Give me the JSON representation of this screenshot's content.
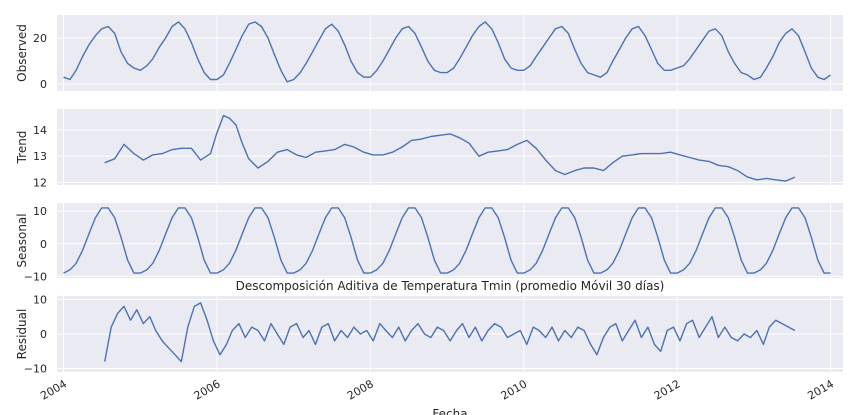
{
  "chart_data": {
    "type": "line",
    "title": "Descomposición Aditiva de Temperatura Tmin (promedio Móvil 30 días)",
    "xlabel": "Fecha",
    "x_range": [
      "2003-12-01",
      "2014-03-01"
    ],
    "x_ticks": [
      "2004",
      "2006",
      "2008",
      "2010",
      "2012",
      "2014"
    ],
    "grid": true,
    "legend": "none",
    "line_color": "#4c72b0",
    "panel_background": "#eaeaf2",
    "panels": [
      {
        "ylabel": "Observed",
        "ylim": [
          -3,
          30
        ],
        "y_ticks": [
          "0",
          "20"
        ],
        "y_tick_values": [
          0,
          20
        ],
        "series": {
          "x": [
            "2004-01-01",
            "2004-02-01",
            "2004-03-01",
            "2004-04-01",
            "2004-05-01",
            "2004-06-01",
            "2004-07-01",
            "2004-08-01",
            "2004-09-01",
            "2004-10-01",
            "2004-11-01",
            "2004-12-01",
            "2005-01-01",
            "2005-02-01",
            "2005-03-01",
            "2005-04-01",
            "2005-05-01",
            "2005-06-01",
            "2005-07-01",
            "2005-08-01",
            "2005-09-01",
            "2005-10-01",
            "2005-11-01",
            "2005-12-01",
            "2006-01-01",
            "2006-02-01",
            "2006-03-01",
            "2006-04-01",
            "2006-05-01",
            "2006-06-01",
            "2006-07-01",
            "2006-08-01",
            "2006-09-01",
            "2006-10-01",
            "2006-11-01",
            "2006-12-01",
            "2007-01-01",
            "2007-02-01",
            "2007-03-01",
            "2007-04-01",
            "2007-05-01",
            "2007-06-01",
            "2007-07-01",
            "2007-08-01",
            "2007-09-01",
            "2007-10-01",
            "2007-11-01",
            "2007-12-01",
            "2008-01-01",
            "2008-02-01",
            "2008-03-01",
            "2008-04-01",
            "2008-05-01",
            "2008-06-01",
            "2008-07-01",
            "2008-08-01",
            "2008-09-01",
            "2008-10-01",
            "2008-11-01",
            "2008-12-01",
            "2009-01-01",
            "2009-02-01",
            "2009-03-01",
            "2009-04-01",
            "2009-05-01",
            "2009-06-01",
            "2009-07-01",
            "2009-08-01",
            "2009-09-01",
            "2009-10-01",
            "2009-11-01",
            "2009-12-01",
            "2010-01-01",
            "2010-02-01",
            "2010-03-01",
            "2010-04-01",
            "2010-05-01",
            "2010-06-01",
            "2010-07-01",
            "2010-08-01",
            "2010-09-01",
            "2010-10-01",
            "2010-11-01",
            "2010-12-01",
            "2011-01-01",
            "2011-02-01",
            "2011-03-01",
            "2011-04-01",
            "2011-05-01",
            "2011-06-01",
            "2011-07-01",
            "2011-08-01",
            "2011-09-01",
            "2011-10-01",
            "2011-11-01",
            "2011-12-01",
            "2012-01-01",
            "2012-02-01",
            "2012-03-01",
            "2012-04-01",
            "2012-05-01",
            "2012-06-01",
            "2012-07-01",
            "2012-08-01",
            "2012-09-01",
            "2012-10-01",
            "2012-11-01",
            "2012-12-01",
            "2013-01-01",
            "2013-02-01",
            "2013-03-01",
            "2013-04-01",
            "2013-05-01",
            "2013-06-01",
            "2013-07-01",
            "2013-08-01",
            "2013-09-01",
            "2013-10-01",
            "2013-11-01",
            "2013-12-01",
            "2014-01-01"
          ],
          "y": [
            3,
            2,
            6,
            12,
            17,
            21,
            24,
            25,
            22,
            14,
            9,
            7,
            6,
            8,
            11,
            16,
            20,
            25,
            27,
            24,
            18,
            11,
            5,
            2,
            2,
            4,
            9,
            15,
            21,
            26,
            27,
            25,
            20,
            13,
            6,
            1,
            2,
            5,
            9,
            14,
            19,
            24,
            26,
            23,
            17,
            10,
            5,
            3,
            3,
            6,
            10,
            15,
            20,
            24,
            25,
            22,
            16,
            10,
            6,
            5,
            5,
            7,
            11,
            16,
            21,
            25,
            27,
            24,
            18,
            11,
            7,
            6,
            6,
            8,
            12,
            16,
            20,
            24,
            25,
            22,
            15,
            9,
            5,
            4,
            3,
            5,
            10,
            15,
            20,
            24,
            25,
            21,
            15,
            9,
            6,
            6,
            7,
            8,
            11,
            15,
            19,
            23,
            24,
            21,
            14,
            9,
            5,
            4,
            2,
            3,
            7,
            12,
            18,
            22,
            24,
            21,
            14,
            7,
            3,
            2,
            4
          ]
        }
      },
      {
        "ylabel": "Trend",
        "ylim": [
          11.9,
          14.8
        ],
        "y_ticks": [
          "12",
          "13",
          "14"
        ],
        "y_tick_values": [
          12,
          13,
          14
        ],
        "series": {
          "x": [
            "2004-07-15",
            "2004-09-01",
            "2004-10-15",
            "2004-12-01",
            "2005-01-15",
            "2005-03-01",
            "2005-04-15",
            "2005-06-01",
            "2005-07-15",
            "2005-09-01",
            "2005-10-15",
            "2005-12-01",
            "2006-01-01",
            "2006-02-01",
            "2006-03-01",
            "2006-04-01",
            "2006-05-01",
            "2006-06-01",
            "2006-07-15",
            "2006-09-01",
            "2006-10-15",
            "2006-12-01",
            "2007-01-15",
            "2007-03-01",
            "2007-04-15",
            "2007-06-01",
            "2007-07-15",
            "2007-09-01",
            "2007-10-15",
            "2007-12-01",
            "2008-01-15",
            "2008-03-01",
            "2008-04-15",
            "2008-06-01",
            "2008-07-15",
            "2008-09-01",
            "2008-10-15",
            "2008-12-01",
            "2009-01-15",
            "2009-03-01",
            "2009-04-15",
            "2009-06-01",
            "2009-07-15",
            "2009-09-01",
            "2009-10-15",
            "2009-12-01",
            "2010-01-15",
            "2010-03-01",
            "2010-04-15",
            "2010-06-01",
            "2010-07-15",
            "2010-09-01",
            "2010-10-15",
            "2010-12-01",
            "2011-01-15",
            "2011-03-01",
            "2011-04-15",
            "2011-06-01",
            "2011-07-15",
            "2011-09-01",
            "2011-10-15",
            "2011-12-01",
            "2012-01-15",
            "2012-03-01",
            "2012-04-15",
            "2012-06-01",
            "2012-07-15",
            "2012-09-01",
            "2012-10-15",
            "2012-12-01",
            "2013-01-15",
            "2013-03-01",
            "2013-04-15",
            "2013-06-01",
            "2013-07-15"
          ],
          "y": [
            12.75,
            12.9,
            13.45,
            13.1,
            12.85,
            13.05,
            13.1,
            13.25,
            13.3,
            13.3,
            12.85,
            13.1,
            13.9,
            14.55,
            14.45,
            14.2,
            13.5,
            12.9,
            12.55,
            12.8,
            13.15,
            13.25,
            13.05,
            12.95,
            13.15,
            13.2,
            13.25,
            13.45,
            13.35,
            13.15,
            13.05,
            13.05,
            13.15,
            13.35,
            13.6,
            13.65,
            13.75,
            13.8,
            13.85,
            13.7,
            13.5,
            13.0,
            13.15,
            13.2,
            13.25,
            13.45,
            13.6,
            13.3,
            12.85,
            12.45,
            12.3,
            12.45,
            12.55,
            12.55,
            12.45,
            12.75,
            13.0,
            13.05,
            13.1,
            13.1,
            13.1,
            13.15,
            13.05,
            12.95,
            12.85,
            12.8,
            12.65,
            12.6,
            12.45,
            12.2,
            12.1,
            12.15,
            12.1,
            12.05,
            12.2
          ]
        }
      },
      {
        "ylabel": "Seasonal",
        "ylim": [
          -10.5,
          12.5
        ],
        "y_ticks": [
          "10",
          "0",
          "−10"
        ],
        "y_tick_values": [
          10,
          0,
          -10
        ],
        "series": {
          "x": [
            "2004-01-01",
            "2004-02-01",
            "2004-03-01",
            "2004-04-01",
            "2004-05-01",
            "2004-06-01",
            "2004-07-01",
            "2004-08-01",
            "2004-09-01",
            "2004-10-01",
            "2004-11-01",
            "2004-12-01",
            "2005-01-01",
            "2005-02-01",
            "2005-03-01",
            "2005-04-01",
            "2005-05-01",
            "2005-06-01",
            "2005-07-01",
            "2005-08-01",
            "2005-09-01",
            "2005-10-01",
            "2005-11-01",
            "2005-12-01",
            "2006-01-01",
            "2006-02-01",
            "2006-03-01",
            "2006-04-01",
            "2006-05-01",
            "2006-06-01",
            "2006-07-01",
            "2006-08-01",
            "2006-09-01",
            "2006-10-01",
            "2006-11-01",
            "2006-12-01",
            "2007-01-01",
            "2007-02-01",
            "2007-03-01",
            "2007-04-01",
            "2007-05-01",
            "2007-06-01",
            "2007-07-01",
            "2007-08-01",
            "2007-09-01",
            "2007-10-01",
            "2007-11-01",
            "2007-12-01",
            "2008-01-01",
            "2008-02-01",
            "2008-03-01",
            "2008-04-01",
            "2008-05-01",
            "2008-06-01",
            "2008-07-01",
            "2008-08-01",
            "2008-09-01",
            "2008-10-01",
            "2008-11-01",
            "2008-12-01",
            "2009-01-01",
            "2009-02-01",
            "2009-03-01",
            "2009-04-01",
            "2009-05-01",
            "2009-06-01",
            "2009-07-01",
            "2009-08-01",
            "2009-09-01",
            "2009-10-01",
            "2009-11-01",
            "2009-12-01",
            "2010-01-01",
            "2010-02-01",
            "2010-03-01",
            "2010-04-01",
            "2010-05-01",
            "2010-06-01",
            "2010-07-01",
            "2010-08-01",
            "2010-09-01",
            "2010-10-01",
            "2010-11-01",
            "2010-12-01",
            "2011-01-01",
            "2011-02-01",
            "2011-03-01",
            "2011-04-01",
            "2011-05-01",
            "2011-06-01",
            "2011-07-01",
            "2011-08-01",
            "2011-09-01",
            "2011-10-01",
            "2011-11-01",
            "2011-12-01",
            "2012-01-01",
            "2012-02-01",
            "2012-03-01",
            "2012-04-01",
            "2012-05-01",
            "2012-06-01",
            "2012-07-01",
            "2012-08-01",
            "2012-09-01",
            "2012-10-01",
            "2012-11-01",
            "2012-12-01",
            "2013-01-01",
            "2013-02-01",
            "2013-03-01",
            "2013-04-01",
            "2013-05-01",
            "2013-06-01",
            "2013-07-01",
            "2013-08-01",
            "2013-09-01",
            "2013-10-01",
            "2013-11-01",
            "2013-12-01",
            "2014-01-01"
          ],
          "y": [
            -9,
            -8,
            -6,
            -2,
            3,
            8,
            11,
            11,
            8,
            2,
            -5,
            -9,
            -9,
            -8,
            -6,
            -2,
            3,
            8,
            11,
            11,
            8,
            2,
            -5,
            -9,
            -9,
            -8,
            -6,
            -2,
            3,
            8,
            11,
            11,
            8,
            2,
            -5,
            -9,
            -9,
            -8,
            -6,
            -2,
            3,
            8,
            11,
            11,
            8,
            2,
            -5,
            -9,
            -9,
            -8,
            -6,
            -2,
            3,
            8,
            11,
            11,
            8,
            2,
            -5,
            -9,
            -9,
            -8,
            -6,
            -2,
            3,
            8,
            11,
            11,
            8,
            2,
            -5,
            -9,
            -9,
            -8,
            -6,
            -2,
            3,
            8,
            11,
            11,
            8,
            2,
            -5,
            -9,
            -9,
            -8,
            -6,
            -2,
            3,
            8,
            11,
            11,
            8,
            2,
            -5,
            -9,
            -9,
            -8,
            -6,
            -2,
            3,
            8,
            11,
            11,
            8,
            2,
            -5,
            -9,
            -9,
            -8,
            -6,
            -2,
            3,
            8,
            11,
            11,
            8,
            2,
            -5,
            -9,
            -9
          ]
        }
      },
      {
        "ylabel": "Residual",
        "ylim": [
          -11,
          11
        ],
        "y_ticks": [
          "10",
          "0",
          "−10"
        ],
        "y_tick_values": [
          10,
          0,
          -10
        ],
        "series": {
          "x": [
            "2004-07-15",
            "2004-08-15",
            "2004-09-15",
            "2004-10-15",
            "2004-11-15",
            "2004-12-15",
            "2005-01-15",
            "2005-02-15",
            "2005-03-15",
            "2005-04-15",
            "2005-05-15",
            "2005-06-15",
            "2005-07-15",
            "2005-08-15",
            "2005-09-15",
            "2005-10-15",
            "2005-11-15",
            "2005-12-15",
            "2006-01-15",
            "2006-02-15",
            "2006-03-15",
            "2006-04-15",
            "2006-05-15",
            "2006-06-15",
            "2006-07-15",
            "2006-08-15",
            "2006-09-15",
            "2006-10-15",
            "2006-11-15",
            "2006-12-15",
            "2007-01-15",
            "2007-02-15",
            "2007-03-15",
            "2007-04-15",
            "2007-05-15",
            "2007-06-15",
            "2007-07-15",
            "2007-08-15",
            "2007-09-15",
            "2007-10-15",
            "2007-11-15",
            "2007-12-15",
            "2008-01-15",
            "2008-02-15",
            "2008-03-15",
            "2008-04-15",
            "2008-05-15",
            "2008-06-15",
            "2008-07-15",
            "2008-08-15",
            "2008-09-15",
            "2008-10-15",
            "2008-11-15",
            "2008-12-15",
            "2009-01-15",
            "2009-02-15",
            "2009-03-15",
            "2009-04-15",
            "2009-05-15",
            "2009-06-15",
            "2009-07-15",
            "2009-08-15",
            "2009-09-15",
            "2009-10-15",
            "2009-11-15",
            "2009-12-15",
            "2010-01-15",
            "2010-02-15",
            "2010-03-15",
            "2010-04-15",
            "2010-05-15",
            "2010-06-15",
            "2010-07-15",
            "2010-08-15",
            "2010-09-15",
            "2010-10-15",
            "2010-11-15",
            "2010-12-15",
            "2011-01-15",
            "2011-02-15",
            "2011-03-15",
            "2011-04-15",
            "2011-05-15",
            "2011-06-15",
            "2011-07-15",
            "2011-08-15",
            "2011-09-15",
            "2011-10-15",
            "2011-11-15",
            "2011-12-15",
            "2012-01-15",
            "2012-02-15",
            "2012-03-15",
            "2012-04-15",
            "2012-05-15",
            "2012-06-15",
            "2012-07-15",
            "2012-08-15",
            "2012-09-15",
            "2012-10-15",
            "2012-11-15",
            "2012-12-15",
            "2013-01-15",
            "2013-02-15",
            "2013-03-15",
            "2013-04-15",
            "2013-05-15",
            "2013-06-15",
            "2013-07-15"
          ],
          "y": [
            -8,
            2,
            6,
            8,
            4,
            7,
            3,
            5,
            1,
            -2,
            -4,
            -6,
            -8,
            2,
            8,
            9,
            4,
            -2,
            -6,
            -3,
            1,
            3,
            -1,
            2,
            1,
            -2,
            3,
            0,
            -3,
            2,
            3,
            -1,
            1,
            -3,
            2,
            3,
            -2,
            1,
            -1,
            2,
            0,
            1,
            -2,
            3,
            1,
            -1,
            2,
            -2,
            1,
            3,
            0,
            -1,
            2,
            1,
            -2,
            1,
            3,
            -1,
            2,
            -2,
            1,
            3,
            2,
            -1,
            0,
            1,
            -3,
            2,
            1,
            -1,
            2,
            -2,
            1,
            -1,
            2,
            1,
            -3,
            -6,
            -1,
            2,
            3,
            -2,
            1,
            4,
            -1,
            2,
            -3,
            -5,
            1,
            2,
            -2,
            3,
            4,
            -1,
            2,
            5,
            -1,
            2,
            -1,
            -2,
            0,
            -1,
            1,
            -3,
            2,
            4,
            3,
            2,
            1
          ]
        }
      }
    ]
  }
}
